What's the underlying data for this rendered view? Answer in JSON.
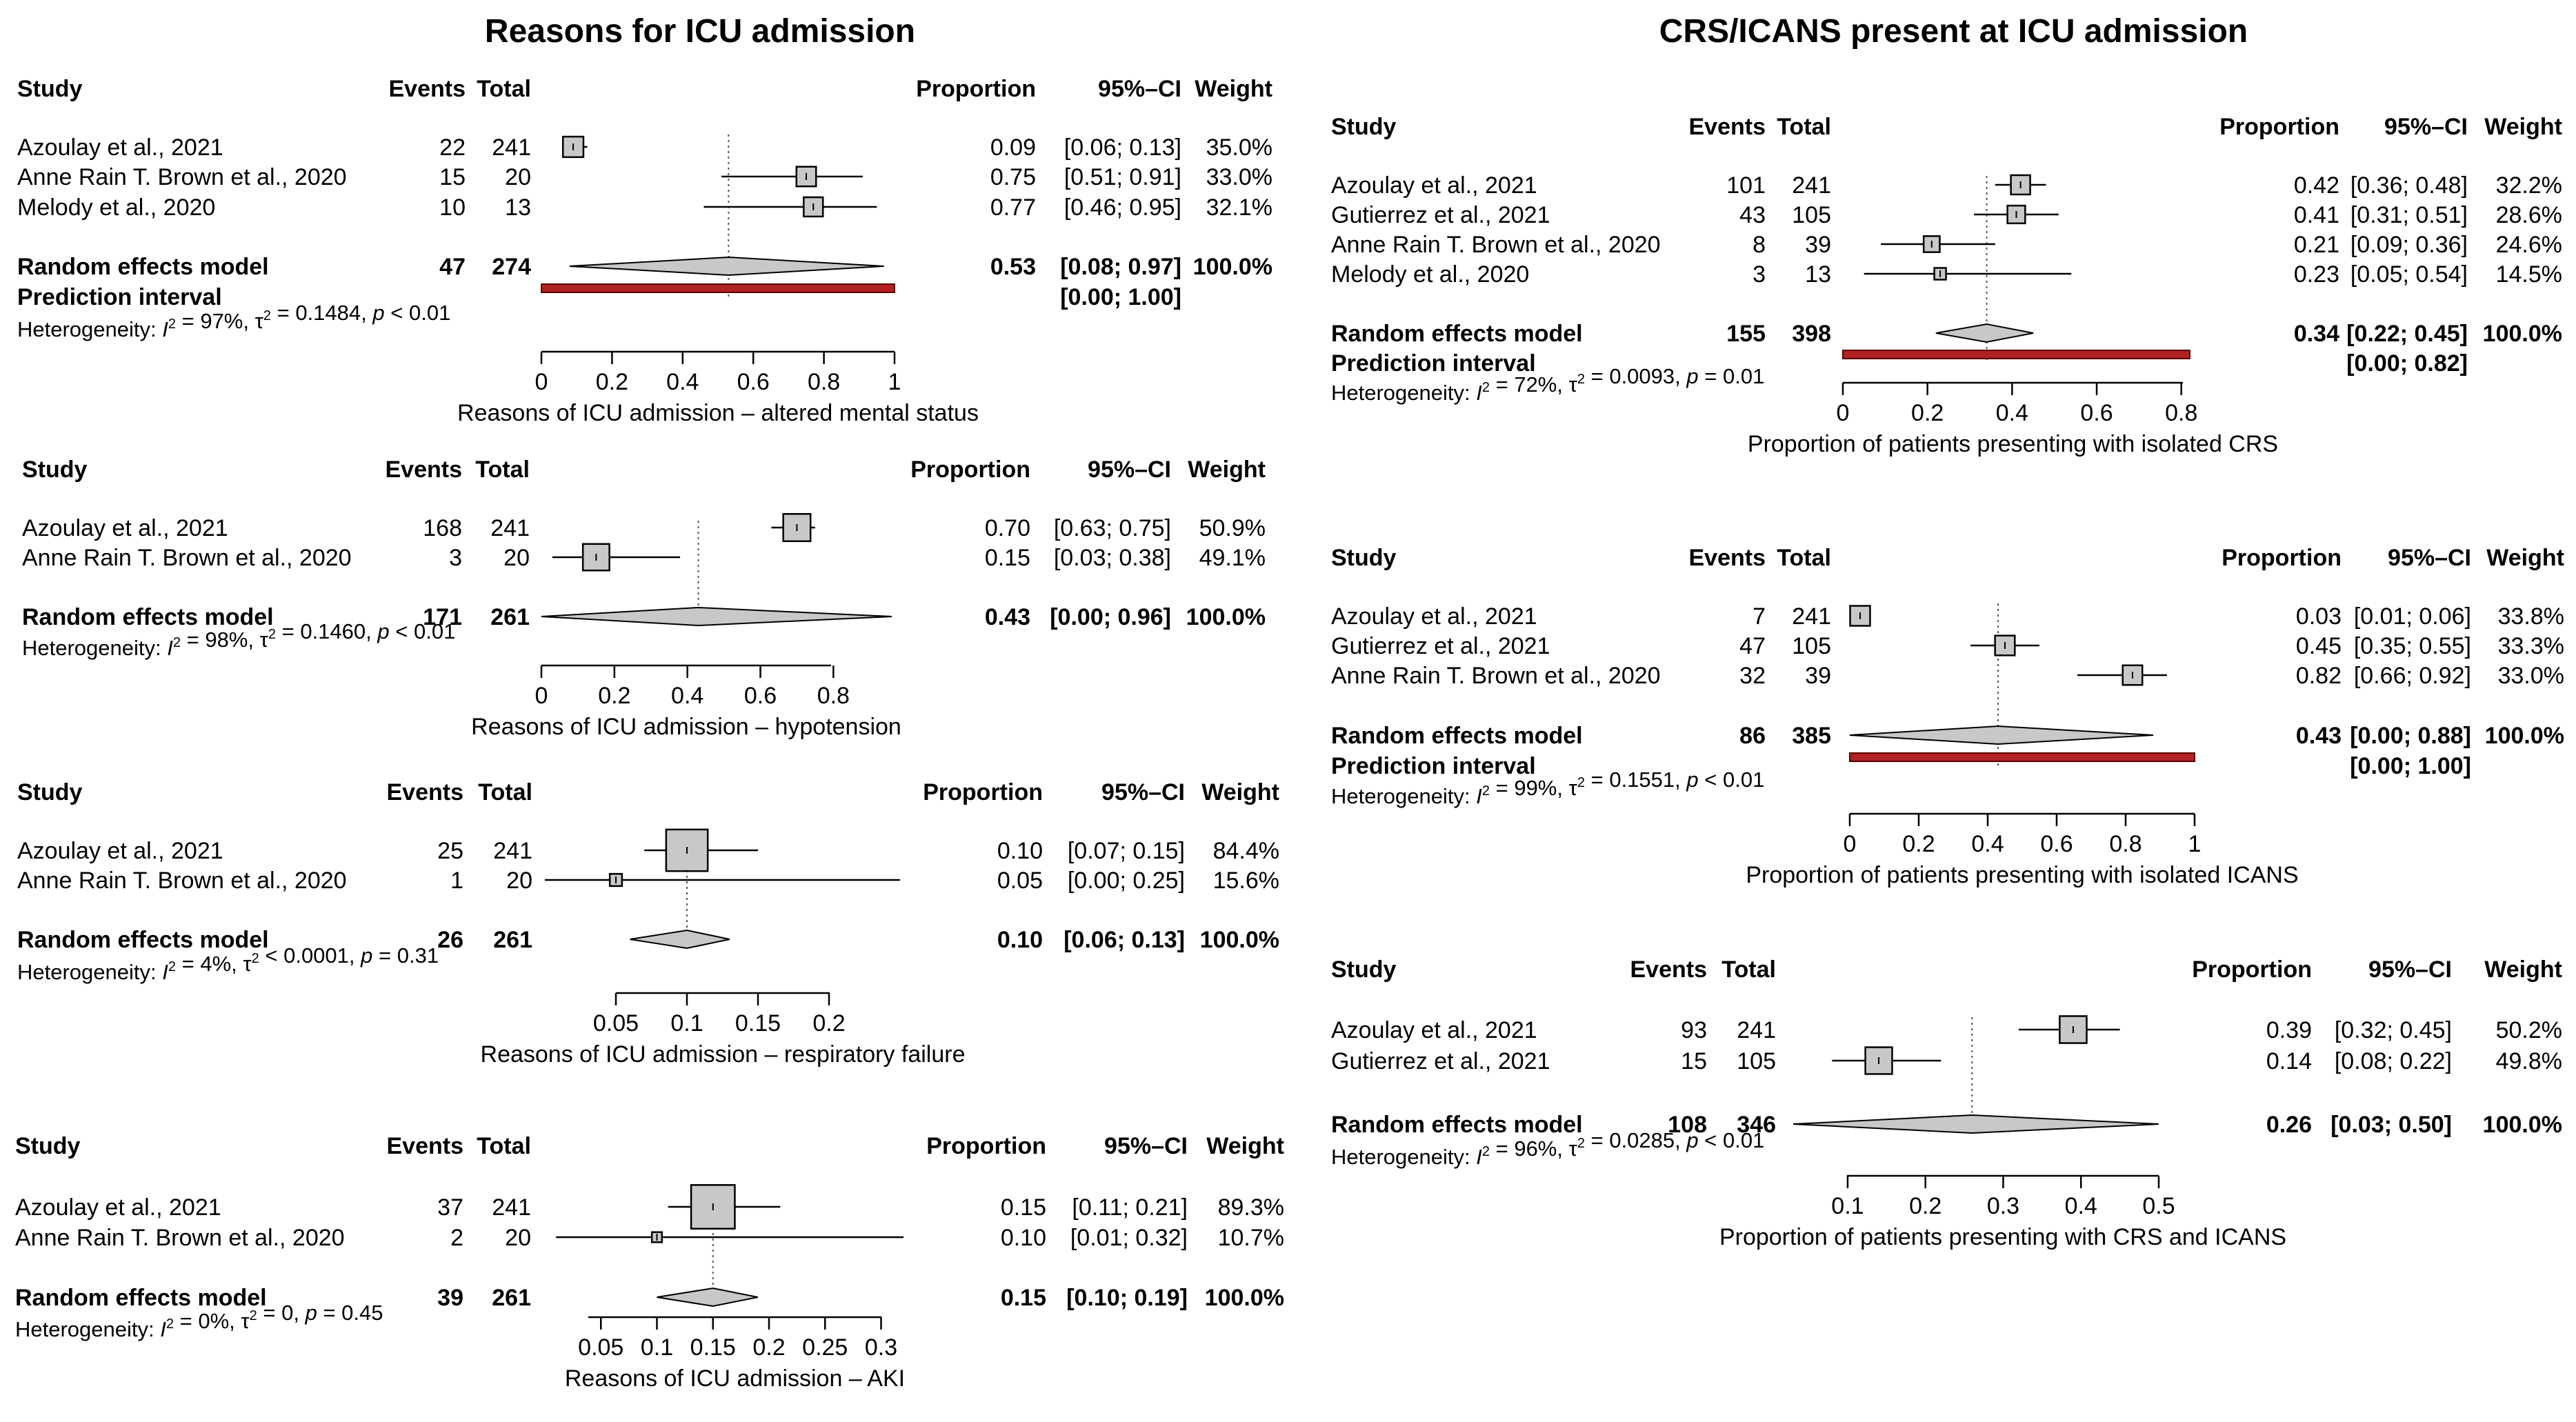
{
  "panels": {
    "left_title": "Reasons for ICU admission",
    "right_title": "CRS/ICANS present at ICU admission"
  },
  "headers": {
    "study": "Study",
    "events": "Events",
    "total": "Total",
    "proportion": "Proportion",
    "ci": "95%–CI",
    "weight": "Weight"
  },
  "colors": {
    "box_fill": "#c8c8c8",
    "diamond_fill": "#c8c8c8",
    "prediction_interval": "#b22222",
    "prediction_interval_outline": "#5a0000",
    "line": "#000000",
    "reference_line": "#555555"
  },
  "chart_data": [
    {
      "type": "forest",
      "xlabel": "Reasons of ICU admission – altered mental status",
      "xlim": [
        0,
        1
      ],
      "ticks": [
        0,
        0.2,
        0.4,
        0.6,
        0.8,
        1
      ],
      "tick_labels": [
        "0",
        "0.2",
        "0.4",
        "0.6",
        "0.8",
        "1"
      ],
      "studies": [
        {
          "study": "Azoulay et al., 2021",
          "events": 22,
          "total": 241,
          "proportion": 0.09,
          "ci_low": 0.06,
          "ci_high": 0.13,
          "weight": "35.0%",
          "prop_text": "0.09",
          "ci_text": "[0.06; 0.13]"
        },
        {
          "study": "Anne Rain T. Brown et al., 2020",
          "events": 15,
          "total": 20,
          "proportion": 0.75,
          "ci_low": 0.51,
          "ci_high": 0.91,
          "weight": "33.0%",
          "prop_text": "0.75",
          "ci_text": "[0.51; 0.91]"
        },
        {
          "study": "Melody et al., 2020",
          "events": 10,
          "total": 13,
          "proportion": 0.77,
          "ci_low": 0.46,
          "ci_high": 0.95,
          "weight": "32.1%",
          "prop_text": "0.77",
          "ci_text": "[0.46; 0.95]"
        }
      ],
      "pooled": {
        "label": "Random effects model",
        "events": 47,
        "total": 274,
        "estimate": 0.53,
        "ci_low": 0.08,
        "ci_high": 0.97,
        "weight": "100.0%",
        "prop_text": "0.53",
        "ci_text": "[0.08; 0.97]"
      },
      "prediction": {
        "label": "Prediction interval",
        "low": 0.0,
        "high": 1.0,
        "ci_text": "[0.00; 1.00]"
      },
      "heterogeneity": {
        "i2": "97%",
        "tau2": "= 0.1484",
        "p": "< 0.01"
      }
    },
    {
      "type": "forest",
      "xlabel": "Reasons of ICU admission – hypotension",
      "xlim": [
        0,
        0.96
      ],
      "ticks": [
        0,
        0.2,
        0.4,
        0.6,
        0.8
      ],
      "tick_labels": [
        "0",
        "0.2",
        "0.4",
        "0.6",
        "0.8"
      ],
      "studies": [
        {
          "study": "Azoulay et al., 2021",
          "events": 168,
          "total": 241,
          "proportion": 0.7,
          "ci_low": 0.63,
          "ci_high": 0.75,
          "weight": "50.9%",
          "prop_text": "0.70",
          "ci_text": "[0.63; 0.75]"
        },
        {
          "study": "Anne Rain T. Brown et al., 2020",
          "events": 3,
          "total": 20,
          "proportion": 0.15,
          "ci_low": 0.03,
          "ci_high": 0.38,
          "weight": "49.1%",
          "prop_text": "0.15",
          "ci_text": "[0.03; 0.38]"
        }
      ],
      "pooled": {
        "label": "Random effects model",
        "events": 171,
        "total": 261,
        "estimate": 0.43,
        "ci_low": 0.0,
        "ci_high": 0.96,
        "weight": "100.0%",
        "prop_text": "0.43",
        "ci_text": "[0.00; 0.96]"
      },
      "heterogeneity": {
        "i2": "98%",
        "tau2": "= 0.1460",
        "p": "< 0.01"
      }
    },
    {
      "type": "forest",
      "xlabel": "Reasons of ICU admission – respiratory failure",
      "xlim": [
        0,
        0.25
      ],
      "axis_range": [
        0.05,
        0.2
      ],
      "ticks": [
        0.05,
        0.1,
        0.15,
        0.2
      ],
      "tick_labels": [
        "0.05",
        "0.1",
        "0.15",
        "0.2"
      ],
      "studies": [
        {
          "study": "Azoulay et al., 2021",
          "events": 25,
          "total": 241,
          "proportion": 0.1,
          "ci_low": 0.07,
          "ci_high": 0.15,
          "weight": "84.4%",
          "prop_text": "0.10",
          "ci_text": "[0.07; 0.15]"
        },
        {
          "study": "Anne Rain T. Brown et al., 2020",
          "events": 1,
          "total": 20,
          "proportion": 0.05,
          "ci_low": 0.0,
          "ci_high": 0.25,
          "weight": "15.6%",
          "prop_text": "0.05",
          "ci_text": "[0.00; 0.25]"
        }
      ],
      "pooled": {
        "label": "Random effects model",
        "events": 26,
        "total": 261,
        "estimate": 0.1,
        "ci_low": 0.06,
        "ci_high": 0.13,
        "weight": "100.0%",
        "prop_text": "0.10",
        "ci_text": "[0.06; 0.13]"
      },
      "heterogeneity": {
        "i2": "4%",
        "tau2": "< 0.0001",
        "p": "= 0.31"
      }
    },
    {
      "type": "forest",
      "xlabel": "Reasons of ICU admission – AKI",
      "xlim": [
        0,
        0.32
      ],
      "axis_range": [
        0.05,
        0.3
      ],
      "ticks": [
        0.05,
        0.1,
        0.15,
        0.2,
        0.25,
        0.3
      ],
      "tick_labels": [
        "0.05",
        "0.1",
        "0.15",
        "0.2",
        "0.25",
        "0.3"
      ],
      "studies": [
        {
          "study": "Azoulay et al., 2021",
          "events": 37,
          "total": 241,
          "proportion": 0.15,
          "ci_low": 0.11,
          "ci_high": 0.21,
          "weight": "89.3%",
          "prop_text": "0.15",
          "ci_text": "[0.11; 0.21]"
        },
        {
          "study": "Anne Rain T. Brown et al., 2020",
          "events": 2,
          "total": 20,
          "proportion": 0.1,
          "ci_low": 0.01,
          "ci_high": 0.32,
          "weight": "10.7%",
          "prop_text": "0.10",
          "ci_text": "[0.01; 0.32]"
        }
      ],
      "pooled": {
        "label": "Random effects model",
        "events": 39,
        "total": 261,
        "estimate": 0.15,
        "ci_low": 0.1,
        "ci_high": 0.19,
        "weight": "100.0%",
        "prop_text": "0.15",
        "ci_text": "[0.10; 0.19]"
      },
      "heterogeneity": {
        "i2": "0%",
        "tau2": "= 0",
        "p": "= 0.45"
      }
    },
    {
      "type": "forest",
      "xlabel": "Proportion of patients presenting with isolated CRS",
      "xlim": [
        0,
        0.82
      ],
      "ticks": [
        0,
        0.2,
        0.4,
        0.6,
        0.8
      ],
      "tick_labels": [
        "0",
        "0.2",
        "0.4",
        "0.6",
        "0.8"
      ],
      "studies": [
        {
          "study": "Azoulay et al., 2021",
          "events": 101,
          "total": 241,
          "proportion": 0.42,
          "ci_low": 0.36,
          "ci_high": 0.48,
          "weight": "32.2%",
          "prop_text": "0.42",
          "ci_text": "[0.36; 0.48]"
        },
        {
          "study": "Gutierrez et al., 2021",
          "events": 43,
          "total": 105,
          "proportion": 0.41,
          "ci_low": 0.31,
          "ci_high": 0.51,
          "weight": "28.6%",
          "prop_text": "0.41",
          "ci_text": "[0.31; 0.51]"
        },
        {
          "study": "Anne Rain T. Brown et al., 2020",
          "events": 8,
          "total": 39,
          "proportion": 0.21,
          "ci_low": 0.09,
          "ci_high": 0.36,
          "weight": "24.6%",
          "prop_text": "0.21",
          "ci_text": "[0.09; 0.36]"
        },
        {
          "study": "Melody et al., 2020",
          "events": 3,
          "total": 13,
          "proportion": 0.23,
          "ci_low": 0.05,
          "ci_high": 0.54,
          "weight": "14.5%",
          "prop_text": "0.23",
          "ci_text": "[0.05; 0.54]"
        }
      ],
      "pooled": {
        "label": "Random effects model",
        "events": 155,
        "total": 398,
        "estimate": 0.34,
        "ci_low": 0.22,
        "ci_high": 0.45,
        "weight": "100.0%",
        "prop_text": "0.34",
        "ci_text": "[0.22; 0.45]"
      },
      "prediction": {
        "label": "Prediction interval",
        "low": 0.0,
        "high": 0.82,
        "ci_text": "[0.00; 0.82]"
      },
      "heterogeneity": {
        "i2": "72%",
        "tau2": "= 0.0093",
        "p": "= 0.01"
      }
    },
    {
      "type": "forest",
      "xlabel": "Proportion of patients presenting with isolated ICANS",
      "xlim": [
        0,
        1
      ],
      "ticks": [
        0,
        0.2,
        0.4,
        0.6,
        0.8,
        1
      ],
      "tick_labels": [
        "0",
        "0.2",
        "0.4",
        "0.6",
        "0.8",
        "1"
      ],
      "studies": [
        {
          "study": "Azoulay et al., 2021",
          "events": 7,
          "total": 241,
          "proportion": 0.03,
          "ci_low": 0.01,
          "ci_high": 0.06,
          "weight": "33.8%",
          "prop_text": "0.03",
          "ci_text": "[0.01; 0.06]"
        },
        {
          "study": "Gutierrez et al., 2021",
          "events": 47,
          "total": 105,
          "proportion": 0.45,
          "ci_low": 0.35,
          "ci_high": 0.55,
          "weight": "33.3%",
          "prop_text": "0.45",
          "ci_text": "[0.35; 0.55]"
        },
        {
          "study": "Anne Rain T. Brown et al., 2020",
          "events": 32,
          "total": 39,
          "proportion": 0.82,
          "ci_low": 0.66,
          "ci_high": 0.92,
          "weight": "33.0%",
          "prop_text": "0.82",
          "ci_text": "[0.66; 0.92]"
        }
      ],
      "pooled": {
        "label": "Random effects model",
        "events": 86,
        "total": 385,
        "estimate": 0.43,
        "ci_low": 0.0,
        "ci_high": 0.88,
        "weight": "100.0%",
        "prop_text": "0.43",
        "ci_text": "[0.00; 0.88]"
      },
      "prediction": {
        "label": "Prediction interval",
        "low": 0.0,
        "high": 1.0,
        "ci_text": "[0.00; 1.00]"
      },
      "heterogeneity": {
        "i2": "99%",
        "tau2": "= 0.1551",
        "p": "< 0.01"
      }
    },
    {
      "type": "forest",
      "xlabel": "Proportion of patients presenting with CRS and ICANS",
      "xlim": [
        0.03,
        0.5
      ],
      "axis_range": [
        0.1,
        0.5
      ],
      "ticks": [
        0.1,
        0.2,
        0.3,
        0.4,
        0.5
      ],
      "tick_labels": [
        "0.1",
        "0.2",
        "0.3",
        "0.4",
        "0.5"
      ],
      "studies": [
        {
          "study": "Azoulay et al., 2021",
          "events": 93,
          "total": 241,
          "proportion": 0.39,
          "ci_low": 0.32,
          "ci_high": 0.45,
          "weight": "50.2%",
          "prop_text": "0.39",
          "ci_text": "[0.32; 0.45]"
        },
        {
          "study": "Gutierrez et al., 2021",
          "events": 15,
          "total": 105,
          "proportion": 0.14,
          "ci_low": 0.08,
          "ci_high": 0.22,
          "weight": "49.8%",
          "prop_text": "0.14",
          "ci_text": "[0.08; 0.22]"
        }
      ],
      "pooled": {
        "label": "Random effects model",
        "events": 108,
        "total": 346,
        "estimate": 0.26,
        "ci_low": 0.03,
        "ci_high": 0.5,
        "weight": "100.0%",
        "prop_text": "0.26",
        "ci_text": "[0.03; 0.50]"
      },
      "heterogeneity": {
        "i2": "96%",
        "tau2": "= 0.0285",
        "p": "< 0.01"
      }
    }
  ]
}
